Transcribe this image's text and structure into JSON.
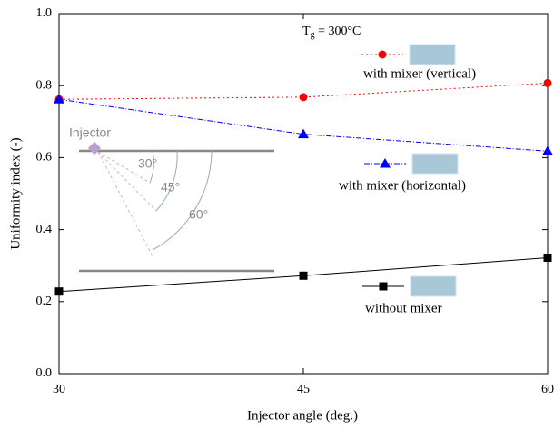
{
  "chart_data": {
    "type": "line",
    "x_label": "Injector angle (deg.)",
    "y_label": "Uniformity index (-)",
    "x": [
      30,
      45,
      60
    ],
    "xlim": [
      30,
      60
    ],
    "xticks": [
      30,
      45,
      60
    ],
    "ylim": [
      0,
      1
    ],
    "yticks": [
      {
        "value": 0,
        "label": "0.0"
      },
      0.2,
      0.4,
      0.6,
      0.8,
      {
        "value": 1,
        "label": "1.0"
      }
    ],
    "series": [
      {
        "name": "with mixer  (vertical)",
        "color": "#ff0000",
        "marker": "circle",
        "dash": "2,3",
        "values": [
          0.762,
          0.768,
          0.807
        ]
      },
      {
        "name": "with mixer (horizontal)",
        "color": "#0000ff",
        "marker": "triangle",
        "dash": "6,2,1,2",
        "values": [
          0.762,
          0.665,
          0.618
        ]
      },
      {
        "name": "without mixer",
        "color": "#000000",
        "marker": "square",
        "dash": "none",
        "values": [
          0.228,
          0.272,
          0.322
        ]
      }
    ],
    "annotations": {
      "temperature": {
        "symbol": "T",
        "subscript": "g",
        "text": " = 300°C"
      },
      "injector": "Injector",
      "angle_30": "30°",
      "angle_45": "45°",
      "angle_60": "60°"
    }
  }
}
